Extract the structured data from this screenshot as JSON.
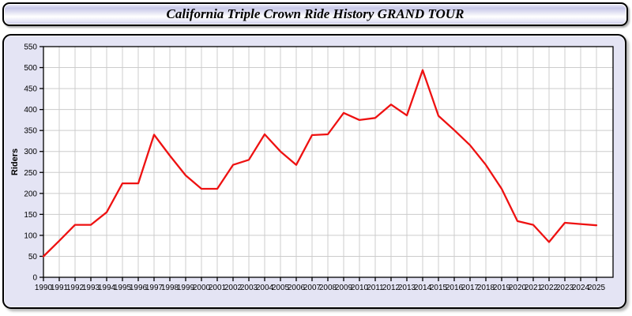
{
  "window": {
    "title": "California Triple Crown Ride History GRAND TOUR"
  },
  "colors": {
    "line": "#ee1111",
    "panel_background": "#e4e4f4",
    "plot_background": "#ffffff",
    "grid": "#cccccc",
    "axis_border": "#000000",
    "tick_text": "#000000"
  },
  "chart_data": {
    "type": "line",
    "title": "California Triple Crown Ride History GRAND TOUR",
    "xlabel": "",
    "ylabel": "Riders",
    "ylim": [
      0,
      550
    ],
    "ytick_step": 50,
    "yticks": [
      0,
      50,
      100,
      150,
      200,
      250,
      300,
      350,
      400,
      450,
      500,
      550
    ],
    "grid": true,
    "legend": "none",
    "x": [
      1990,
      1991,
      1992,
      1993,
      1994,
      1995,
      1996,
      1997,
      1998,
      1999,
      2000,
      2001,
      2002,
      2003,
      2004,
      2005,
      2006,
      2007,
      2008,
      2009,
      2010,
      2011,
      2012,
      2013,
      2014,
      2015,
      2016,
      2017,
      2018,
      2019,
      2020,
      2021,
      2022,
      2023,
      2024,
      2025
    ],
    "series": [
      {
        "name": "Riders",
        "color": "#ee1111",
        "values": [
          50,
          87,
          125,
          125,
          155,
          224,
          224,
          340,
          290,
          243,
          211,
          211,
          268,
          280,
          341,
          300,
          268,
          339,
          341,
          392,
          375,
          380,
          412,
          386,
          494,
          385,
          351,
          315,
          268,
          211,
          134,
          125,
          84,
          130,
          127,
          124
        ]
      }
    ]
  }
}
